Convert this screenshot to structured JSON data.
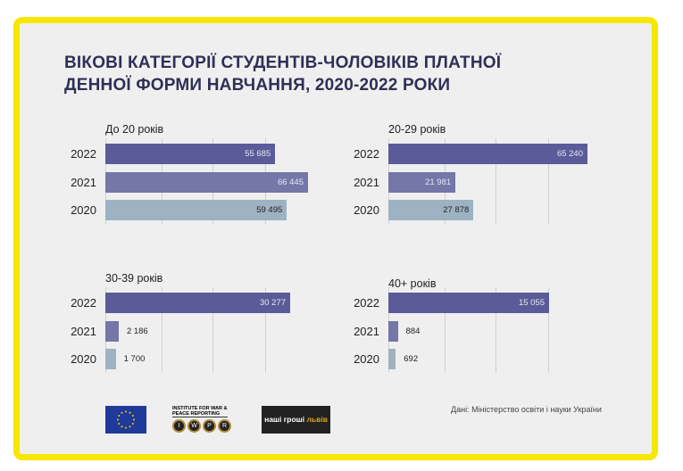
{
  "title_lines": [
    "ВІКОВІ КАТЕГОРІЇ СТУДЕНТІВ-ЧОЛОВІКІВ ПЛАТНОЇ",
    "ДЕННОЇ ФОРМИ НАВЧАННЯ, 2020-2022 РОКИ"
  ],
  "colors": {
    "2022": "#5b5b9a",
    "2021": "#7477a8",
    "2020": "#9db3c3",
    "frame": "#f7e600"
  },
  "chart_data": [
    {
      "type": "bar",
      "orientation": "horizontal",
      "title": "До 20 років",
      "categories": [
        "2022",
        "2021",
        "2020"
      ],
      "values": [
        55685,
        66445,
        59495
      ],
      "value_labels": [
        "55 685",
        "66 445",
        "59 495"
      ]
    },
    {
      "type": "bar",
      "orientation": "horizontal",
      "title": "20-29 років",
      "categories": [
        "2022",
        "2021",
        "2020"
      ],
      "values": [
        65240,
        21981,
        27878
      ],
      "value_labels": [
        "65 240",
        "21 981",
        "27 878"
      ]
    },
    {
      "type": "bar",
      "orientation": "horizontal",
      "title": "30-39 років",
      "categories": [
        "2022",
        "2021",
        "2020"
      ],
      "values": [
        30277,
        2186,
        1700
      ],
      "value_labels": [
        "30 277",
        "2 186",
        "1 700"
      ]
    },
    {
      "type": "bar",
      "orientation": "horizontal",
      "title": "40+ років",
      "categories": [
        "2022",
        "2021",
        "2020"
      ],
      "values": [
        15055,
        884,
        692
      ],
      "value_labels": [
        "15 055",
        "884",
        "692"
      ]
    }
  ],
  "footer": {
    "source": "Дані: Міністерство освіти і науки України",
    "iwpr_text": "INSTITUTE FOR WAR & PEACE REPORTING",
    "iwpr_letters": [
      "I",
      "W",
      "P",
      "R"
    ],
    "ng_text1": "наші гроші",
    "ng_text2": "львів"
  }
}
